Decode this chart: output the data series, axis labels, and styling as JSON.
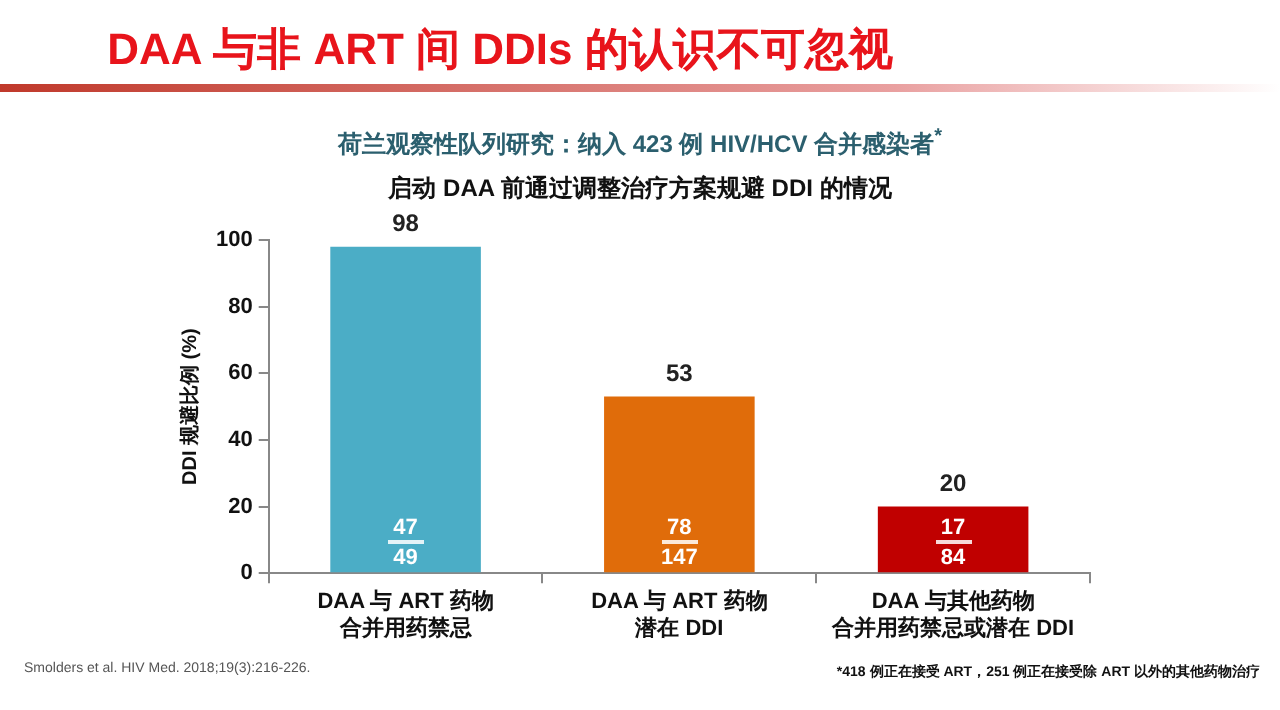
{
  "chart_data": {
    "type": "bar",
    "title": "DAA 与非 ART 间 DDIs 的认识不可忽视",
    "subtitle": "荷兰观察性队列研究：纳入 423 例 HIV/HCV 合并感染者$^{*}$",
    "categories": [
      "DAA 与 ART 药物合并用药禁忌",
      "DAA 与 ART 药物潜在 DDI",
      "DAA 与其他药物合并用药禁忌或潜在 DDI"
    ],
    "values": [
      98,
      53,
      20
    ],
    "colors": [
      "#4badc6",
      "#e06c0a",
      "#c00000"
    ],
    "ylabel": "DDI 规避比例 (%)",
    "ylim": [
      0,
      100
    ],
    "yticks": [
      0,
      20,
      40,
      60,
      80,
      100
    ],
    "grid": false,
    "legend": false,
    "data_labels": true,
    "annotations": [
      "启动 DAA 前通过调整治疗方案规避 DDI 的情况",
      "47",
      "49",
      "78",
      "147",
      "17",
      "84",
      "Smolders et al. HIV Med. 2018;19(3):216-226.",
      "*418 例正在接受 ART，251 例正在接受除 ART 以外的其他药物治疗"
    ]
  }
}
